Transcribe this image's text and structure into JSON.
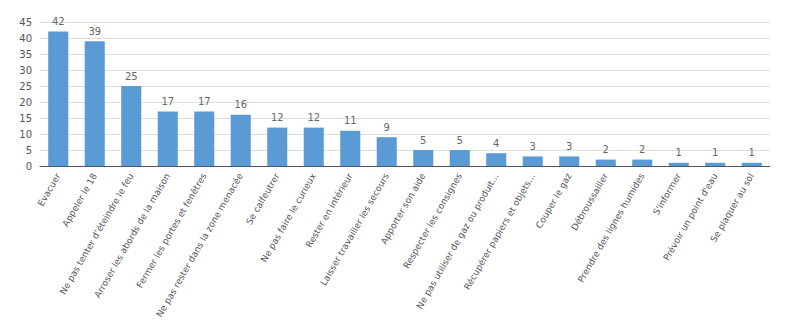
{
  "chart_data": {
    "type": "bar",
    "categories": [
      "Evacuer",
      "Appeler le 18",
      "Ne pas tenter d’éteindre le feu",
      "Arroser les abords de la maison",
      "Fermer les portes et fenêtres",
      "Ne pas rester dans la zone menacée",
      "Se calfeutrer",
      "Ne pas faire le curieux",
      "Rester en intérieur",
      "Laisser travailler les secours",
      "Apporter son aide",
      "Respecter les consignes",
      "Ne pas utiliser de gaz ou produit...",
      "Récupérer papiers et objets...",
      "Couper le gaz",
      "Débroussailler",
      "Prendre des lignes humides",
      "S'informer",
      "Prévoir un point d'eau",
      "Se plaquer au sol"
    ],
    "values": [
      42,
      39,
      25,
      17,
      17,
      16,
      12,
      12,
      11,
      9,
      5,
      5,
      4,
      3,
      3,
      2,
      2,
      1,
      1,
      1
    ],
    "color": "#5B9BD5",
    "ylim": [
      0,
      45
    ],
    "yticks": [
      0,
      5,
      10,
      15,
      20,
      25,
      30,
      35,
      40,
      45
    ],
    "grid": true,
    "data_labels": true
  }
}
